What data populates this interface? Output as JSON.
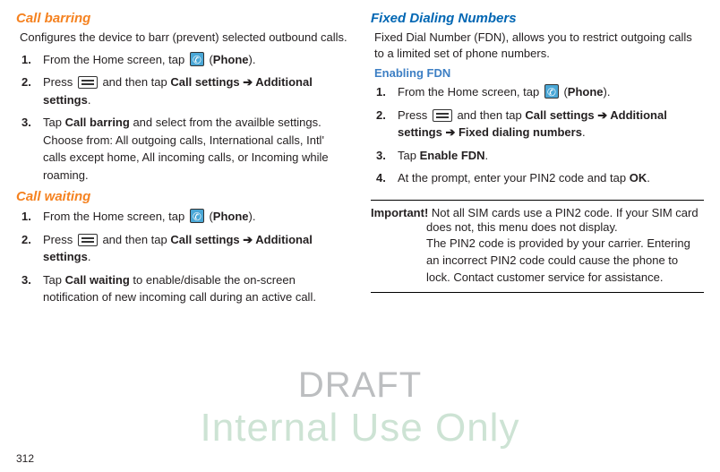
{
  "left": {
    "barring": {
      "title": "Call barring",
      "desc": "Configures the device to barr (prevent) selected outbound calls.",
      "steps": [
        {
          "pre": "From the Home screen, tap ",
          "icon": "phone",
          "post1": " (",
          "bold1": "Phone",
          "post2": ")."
        },
        {
          "pre": "Press ",
          "icon": "menu",
          "post1": " and then tap ",
          "bold1": "Call settings ➔ Additional settings",
          "post2": "."
        },
        {
          "pre": "Tap ",
          "bold1": "Call barring",
          "post1": " and select from the availble settings. Choose from: All outgoing calls, International calls, Intl' calls except home, All incoming calls, or Incoming while roaming."
        }
      ]
    },
    "waiting": {
      "title": "Call waiting",
      "steps": [
        {
          "pre": "From the Home screen, tap ",
          "icon": "phone",
          "post1": " (",
          "bold1": "Phone",
          "post2": ")."
        },
        {
          "pre": "Press ",
          "icon": "menu",
          "post1": " and then tap ",
          "bold1": "Call settings ➔ Additional settings",
          "post2": "."
        },
        {
          "pre": "Tap ",
          "bold1": "Call waiting",
          "post1": " to enable/disable the on-screen notification of new incoming call during an active call."
        }
      ]
    }
  },
  "right": {
    "fdn": {
      "title": "Fixed Dialing Numbers",
      "desc": "Fixed Dial Number (FDN), allows you to restrict outgoing calls to a limited set of phone numbers.",
      "subtitle": "Enabling FDN",
      "steps": [
        {
          "pre": "From the Home screen, tap ",
          "icon": "phone",
          "post1": " (",
          "bold1": "Phone",
          "post2": ")."
        },
        {
          "pre": "Press ",
          "icon": "menu",
          "post1": " and then tap ",
          "bold1": "Call settings ➔ Additional settings ➔ Fixed dialing numbers",
          "post2": "."
        },
        {
          "pre": "Tap ",
          "bold1": "Enable FDN",
          "post1": "."
        },
        {
          "pre": "At the prompt, enter your PIN2 code and tap ",
          "bold1": "OK",
          "post1": "."
        }
      ],
      "important_label": "Important!",
      "important_body": "Not all SIM cards use a PIN2 code. If your SIM card does not, this menu does not display.\nThe PIN2 code is provided by your carrier. Entering an incorrect PIN2 code could cause the phone to lock. Contact customer service for assistance."
    }
  },
  "watermark": {
    "line1": "DRAFT",
    "line2": "Internal Use Only"
  },
  "page_number": "312"
}
